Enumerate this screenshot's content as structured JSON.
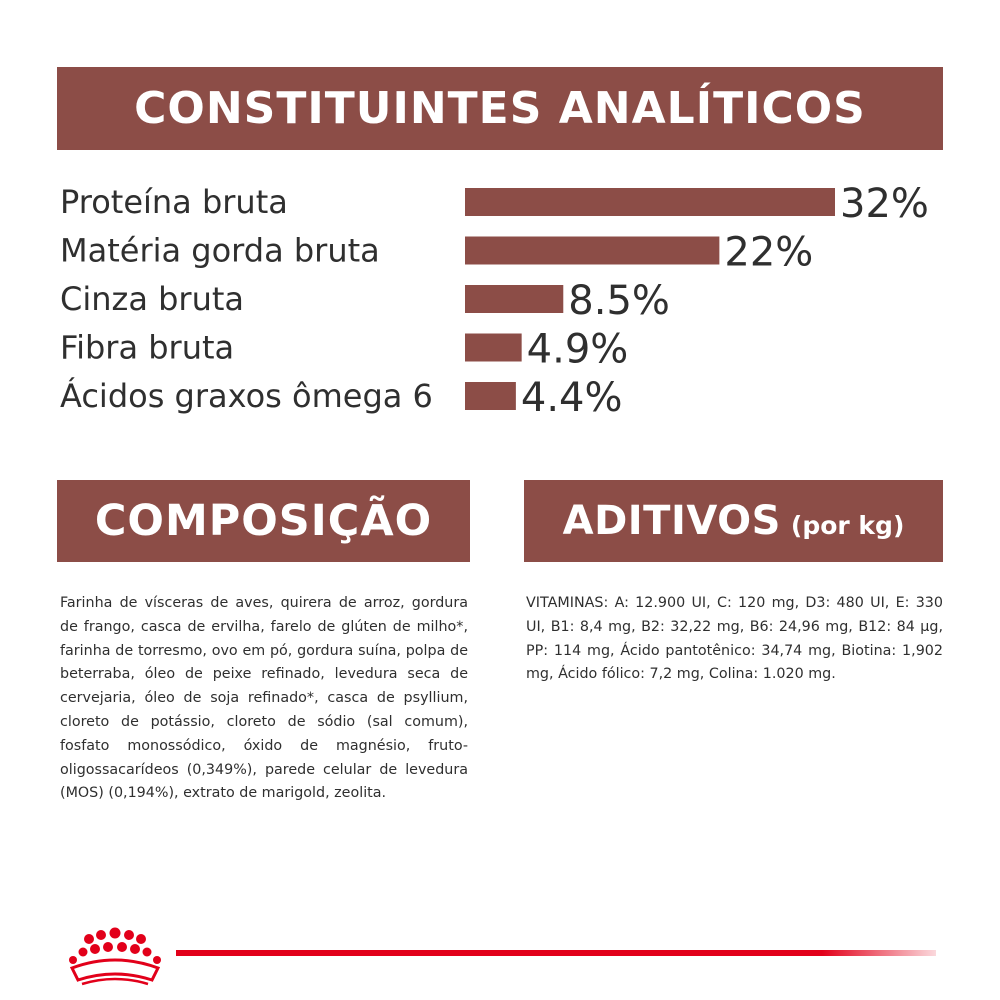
{
  "sections": {
    "analytic_title": "CONSTITUINTES ANALÍTICOS",
    "composition_title": "COMPOSIÇÃO",
    "additives_title": "ADITIVOS",
    "additives_subtitle": "(por kg)"
  },
  "composition_text": "Farinha de vísceras de aves, quirera de arroz, gordura de frango, casca de ervilha, farelo de glúten de milho*, farinha de torresmo, ovo em pó, gordura suína, polpa de beterraba, óleo de peixe refinado, levedura seca de cervejaria, óleo de soja refinado*, casca de psyllium, cloreto de potássio, cloreto de sódio (sal comum), fosfato monossódico, óxido de magnésio, fruto-oligossacarídeos (0,349%), parede celular de levedura (MOS) (0,194%), extrato de marigold, zeolita.",
  "additives_text": "VITAMINAS: A: 12.900 UI, C: 120 mg, D3: 480 UI, E: 330 UI, B1: 8,4 mg, B2: 32,22 mg, B6: 24,96 mg, B12: 84 µg, PP: 114 mg, Ácido pantotênico: 34,74 mg, Biotina: 1,902 mg, Ácido fólico: 7,2 mg, Colina: 1.020 mg.",
  "colors": {
    "banner": "#8c4d47",
    "bar": "#8c4d47",
    "brand_red": "#e2001a"
  },
  "logo": {
    "name": "royal-canin-crown-logo"
  },
  "chart_data": {
    "type": "bar",
    "orientation": "horizontal",
    "title": "CONSTITUINTES ANALÍTICOS",
    "categories": [
      "Proteína bruta",
      "Matéria gorda bruta",
      "Cinza bruta",
      "Fibra bruta",
      "Ácidos graxos ômega 6"
    ],
    "values": [
      32,
      22,
      8.5,
      4.9,
      4.4
    ],
    "value_labels": [
      "32%",
      "22%",
      "8.5%",
      "4.9%",
      "4.4%"
    ],
    "unit": "%",
    "grid": false,
    "legend": "none"
  }
}
